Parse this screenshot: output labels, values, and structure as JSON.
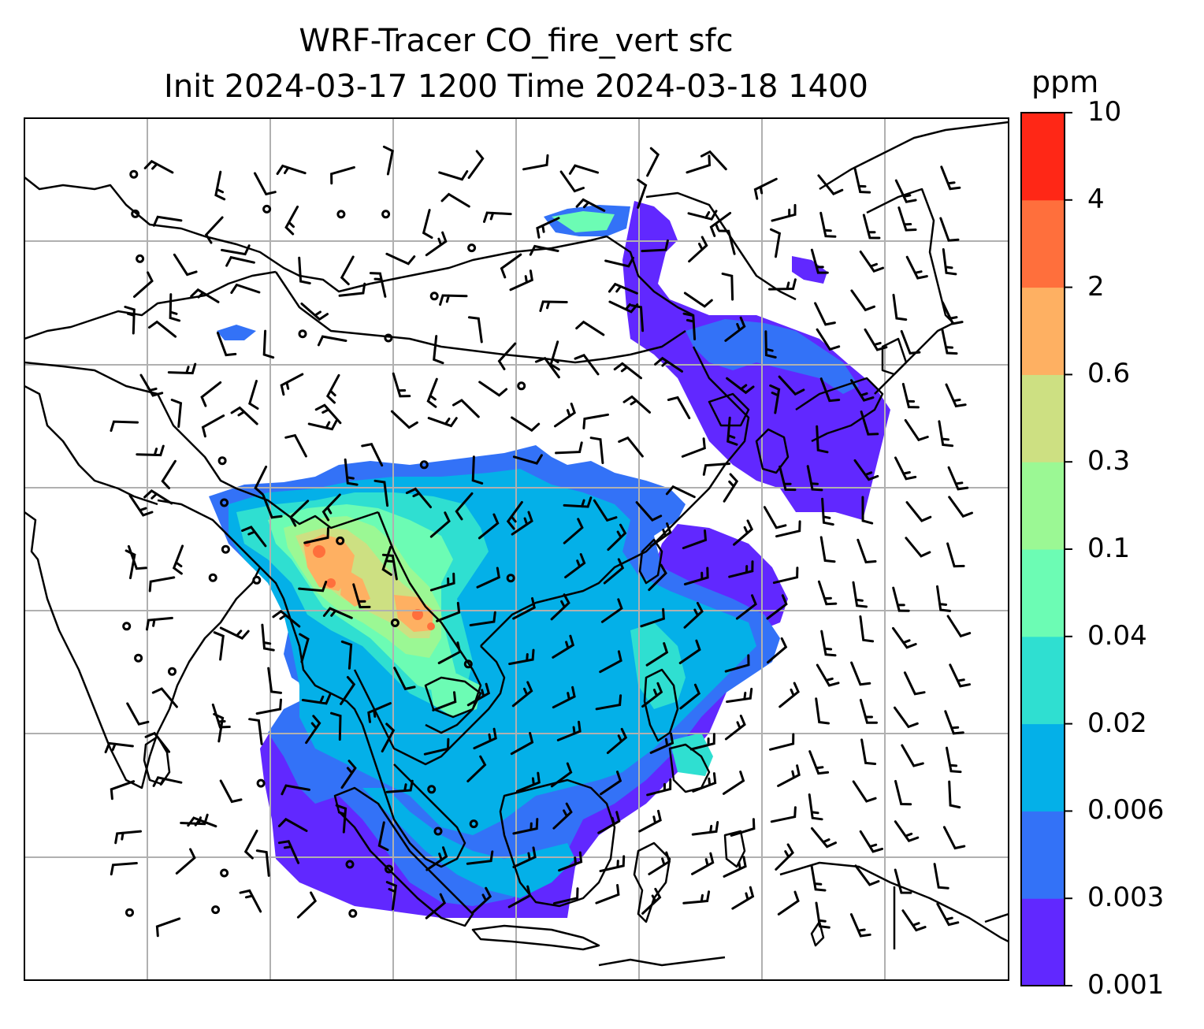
{
  "title": {
    "line1": "WRF-Tracer CO_fire_vert sfc",
    "line2": "Init 2024-03-17 1200 Time 2024-03-18 1400"
  },
  "colorbar": {
    "unit": "ppm",
    "levels": [
      "0.001",
      "0.003",
      "0.006",
      "0.02",
      "0.04",
      "0.1",
      "0.3",
      "0.6",
      "2",
      "4",
      "10"
    ],
    "colors": [
      "#6128ff",
      "#3372f7",
      "#04b0e8",
      "#2fdfd1",
      "#6cfcb4",
      "#9bf894",
      "#cde082",
      "#feb062",
      "#ff6f3c",
      "#ff2716"
    ]
  },
  "map": {
    "projection": "lat-lon",
    "gridlines": true,
    "coastlines": true,
    "country_borders": true,
    "wind_barbs": true,
    "frame_color": "#000000",
    "grid_color": "#b0b0b0"
  }
}
